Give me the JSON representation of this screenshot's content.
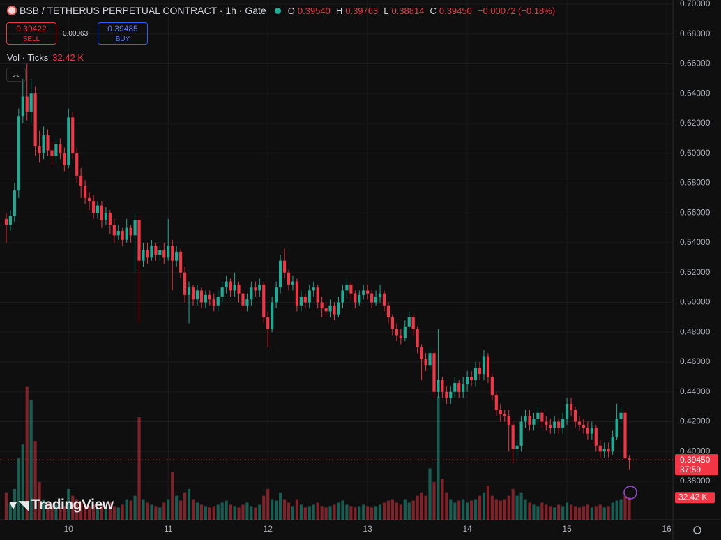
{
  "header": {
    "symbol": "BSB / TETHERUS PERPETUAL CONTRACT · 1h · Gate",
    "ohlc": [
      {
        "key": "O",
        "value": "0.39540"
      },
      {
        "key": "H",
        "value": "0.39763"
      },
      {
        "key": "L",
        "value": "0.38814"
      },
      {
        "key": "C",
        "value": "0.39450"
      }
    ],
    "change": "−0.00072 (−0.18%)",
    "sell": {
      "price": "0.39422",
      "label": "SELL"
    },
    "spread": "0.00063",
    "buy": {
      "price": "0.39485",
      "label": "BUY"
    },
    "volume_title": "Vol · Ticks",
    "logo": "TradingView"
  },
  "chart_data": {
    "type": "candlestick",
    "up_color": "#22ab94",
    "down_color": "#f23645",
    "grid": true,
    "ylim": [
      0.3543,
      0.7028
    ],
    "yticks": [
      {
        "value": 0.38,
        "label": "0.38000"
      },
      {
        "value": 0.4,
        "label": "0.40000"
      },
      {
        "value": 0.42,
        "label": "0.42000"
      },
      {
        "value": 0.44,
        "label": "0.44000"
      },
      {
        "value": 0.46,
        "label": "0.46000"
      },
      {
        "value": 0.48,
        "label": "0.48000"
      },
      {
        "value": 0.5,
        "label": "0.50000"
      },
      {
        "value": 0.52,
        "label": "0.52000"
      },
      {
        "value": 0.54,
        "label": "0.54000"
      },
      {
        "value": 0.56,
        "label": "0.56000"
      },
      {
        "value": 0.58,
        "label": "0.58000"
      },
      {
        "value": 0.6,
        "label": "0.60000"
      },
      {
        "value": 0.62,
        "label": "0.62000"
      },
      {
        "value": 0.64,
        "label": "0.64000"
      },
      {
        "value": 0.66,
        "label": "0.66000"
      },
      {
        "value": 0.68,
        "label": "0.68000"
      },
      {
        "value": 0.7,
        "label": "0.70000"
      }
    ],
    "xlim": [
      -1.5,
      160.5
    ],
    "xticks": [
      {
        "value": 15,
        "label": "10"
      },
      {
        "value": 39,
        "label": "11"
      },
      {
        "value": 63,
        "label": "12"
      },
      {
        "value": 87,
        "label": "13"
      },
      {
        "value": 111,
        "label": "14"
      },
      {
        "value": 135,
        "label": "15"
      },
      {
        "value": 159,
        "label": "16"
      }
    ],
    "volume_lim": [
      0,
      260
    ],
    "last_price": {
      "value": 0.3945,
      "label": "0.39450",
      "countdown": "37:59"
    },
    "last_volume": {
      "value": 32.42,
      "label": "32.42 K"
    },
    "ohlc": [
      [
        0.556,
        0.56,
        0.54,
        0.552
      ],
      [
        0.552,
        0.562,
        0.548,
        0.558
      ],
      [
        0.558,
        0.58,
        0.554,
        0.575
      ],
      [
        0.575,
        0.63,
        0.57,
        0.625
      ],
      [
        0.625,
        0.65,
        0.62,
        0.638
      ],
      [
        0.638,
        0.66,
        0.622,
        0.628
      ],
      [
        0.628,
        0.65,
        0.62,
        0.64
      ],
      [
        0.64,
        0.645,
        0.598,
        0.605
      ],
      [
        0.605,
        0.615,
        0.594,
        0.6
      ],
      [
        0.6,
        0.618,
        0.596,
        0.612
      ],
      [
        0.612,
        0.616,
        0.598,
        0.602
      ],
      [
        0.602,
        0.608,
        0.592,
        0.598
      ],
      [
        0.598,
        0.61,
        0.594,
        0.606
      ],
      [
        0.606,
        0.61,
        0.596,
        0.6
      ],
      [
        0.6,
        0.604,
        0.588,
        0.592
      ],
      [
        0.592,
        0.63,
        0.59,
        0.624
      ],
      [
        0.624,
        0.628,
        0.596,
        0.6
      ],
      [
        0.6,
        0.604,
        0.58,
        0.585
      ],
      [
        0.585,
        0.59,
        0.57,
        0.578
      ],
      [
        0.578,
        0.582,
        0.566,
        0.57
      ],
      [
        0.57,
        0.574,
        0.562,
        0.568
      ],
      [
        0.568,
        0.572,
        0.556,
        0.56
      ],
      [
        0.56,
        0.568,
        0.556,
        0.565
      ],
      [
        0.565,
        0.568,
        0.55,
        0.555
      ],
      [
        0.555,
        0.564,
        0.552,
        0.56
      ],
      [
        0.56,
        0.562,
        0.546,
        0.552
      ],
      [
        0.552,
        0.556,
        0.54,
        0.545
      ],
      [
        0.545,
        0.552,
        0.542,
        0.548
      ],
      [
        0.548,
        0.55,
        0.538,
        0.542
      ],
      [
        0.542,
        0.556,
        0.54,
        0.55
      ],
      [
        0.55,
        0.552,
        0.54,
        0.545
      ],
      [
        0.545,
        0.56,
        0.52,
        0.555
      ],
      [
        0.555,
        0.558,
        0.486,
        0.528
      ],
      [
        0.528,
        0.54,
        0.524,
        0.535
      ],
      [
        0.535,
        0.54,
        0.526,
        0.53
      ],
      [
        0.53,
        0.542,
        0.528,
        0.538
      ],
      [
        0.538,
        0.54,
        0.528,
        0.532
      ],
      [
        0.532,
        0.538,
        0.528,
        0.535
      ],
      [
        0.535,
        0.54,
        0.526,
        0.53
      ],
      [
        0.53,
        0.556,
        0.528,
        0.538
      ],
      [
        0.538,
        0.542,
        0.508,
        0.528
      ],
      [
        0.528,
        0.538,
        0.524,
        0.534
      ],
      [
        0.534,
        0.536,
        0.516,
        0.52
      ],
      [
        0.52,
        0.524,
        0.5,
        0.505
      ],
      [
        0.505,
        0.514,
        0.486,
        0.51
      ],
      [
        0.51,
        0.512,
        0.498,
        0.502
      ],
      [
        0.502,
        0.512,
        0.498,
        0.508
      ],
      [
        0.508,
        0.51,
        0.496,
        0.5
      ],
      [
        0.5,
        0.508,
        0.496,
        0.505
      ],
      [
        0.505,
        0.508,
        0.498,
        0.502
      ],
      [
        0.502,
        0.506,
        0.494,
        0.498
      ],
      [
        0.498,
        0.508,
        0.494,
        0.504
      ],
      [
        0.504,
        0.514,
        0.5,
        0.51
      ],
      [
        0.51,
        0.518,
        0.506,
        0.514
      ],
      [
        0.514,
        0.516,
        0.504,
        0.508
      ],
      [
        0.508,
        0.52,
        0.504,
        0.512
      ],
      [
        0.512,
        0.514,
        0.5,
        0.506
      ],
      [
        0.506,
        0.508,
        0.494,
        0.498
      ],
      [
        0.498,
        0.506,
        0.494,
        0.502
      ],
      [
        0.502,
        0.514,
        0.498,
        0.51
      ],
      [
        0.51,
        0.514,
        0.504,
        0.508
      ],
      [
        0.508,
        0.516,
        0.504,
        0.512
      ],
      [
        0.512,
        0.514,
        0.486,
        0.49
      ],
      [
        0.49,
        0.494,
        0.47,
        0.482
      ],
      [
        0.482,
        0.504,
        0.48,
        0.5
      ],
      [
        0.5,
        0.514,
        0.496,
        0.51
      ],
      [
        0.51,
        0.532,
        0.506,
        0.528
      ],
      [
        0.528,
        0.536,
        0.516,
        0.52
      ],
      [
        0.52,
        0.522,
        0.508,
        0.512
      ],
      [
        0.512,
        0.518,
        0.508,
        0.514
      ],
      [
        0.514,
        0.516,
        0.494,
        0.498
      ],
      [
        0.498,
        0.508,
        0.494,
        0.504
      ],
      [
        0.504,
        0.506,
        0.496,
        0.5
      ],
      [
        0.5,
        0.512,
        0.496,
        0.508
      ],
      [
        0.508,
        0.514,
        0.504,
        0.51
      ],
      [
        0.51,
        0.512,
        0.496,
        0.5
      ],
      [
        0.5,
        0.504,
        0.49,
        0.496
      ],
      [
        0.496,
        0.5,
        0.49,
        0.494
      ],
      [
        0.494,
        0.502,
        0.49,
        0.498
      ],
      [
        0.498,
        0.5,
        0.488,
        0.492
      ],
      [
        0.492,
        0.504,
        0.49,
        0.5
      ],
      [
        0.5,
        0.512,
        0.496,
        0.508
      ],
      [
        0.508,
        0.516,
        0.504,
        0.512
      ],
      [
        0.512,
        0.514,
        0.502,
        0.506
      ],
      [
        0.506,
        0.508,
        0.496,
        0.5
      ],
      [
        0.5,
        0.508,
        0.498,
        0.505
      ],
      [
        0.505,
        0.512,
        0.502,
        0.508
      ],
      [
        0.508,
        0.512,
        0.502,
        0.506
      ],
      [
        0.506,
        0.508,
        0.496,
        0.5
      ],
      [
        0.5,
        0.508,
        0.498,
        0.504
      ],
      [
        0.504,
        0.512,
        0.5,
        0.506
      ],
      [
        0.506,
        0.508,
        0.494,
        0.498
      ],
      [
        0.498,
        0.5,
        0.486,
        0.49
      ],
      [
        0.49,
        0.492,
        0.478,
        0.482
      ],
      [
        0.482,
        0.486,
        0.474,
        0.478
      ],
      [
        0.478,
        0.482,
        0.472,
        0.476
      ],
      [
        0.476,
        0.488,
        0.474,
        0.484
      ],
      [
        0.484,
        0.494,
        0.482,
        0.49
      ],
      [
        0.49,
        0.492,
        0.478,
        0.482
      ],
      [
        0.482,
        0.484,
        0.466,
        0.47
      ],
      [
        0.47,
        0.472,
        0.448,
        0.462
      ],
      [
        0.462,
        0.466,
        0.454,
        0.458
      ],
      [
        0.458,
        0.47,
        0.454,
        0.466
      ],
      [
        0.466,
        0.468,
        0.436,
        0.44
      ],
      [
        0.44,
        0.482,
        0.436,
        0.448
      ],
      [
        0.448,
        0.45,
        0.436,
        0.44
      ],
      [
        0.44,
        0.444,
        0.432,
        0.436
      ],
      [
        0.436,
        0.444,
        0.432,
        0.44
      ],
      [
        0.44,
        0.45,
        0.436,
        0.446
      ],
      [
        0.446,
        0.448,
        0.436,
        0.44
      ],
      [
        0.44,
        0.45,
        0.436,
        0.445
      ],
      [
        0.445,
        0.454,
        0.44,
        0.45
      ],
      [
        0.45,
        0.454,
        0.444,
        0.448
      ],
      [
        0.448,
        0.46,
        0.444,
        0.456
      ],
      [
        0.456,
        0.46,
        0.448,
        0.452
      ],
      [
        0.452,
        0.468,
        0.448,
        0.464
      ],
      [
        0.464,
        0.466,
        0.446,
        0.45
      ],
      [
        0.45,
        0.452,
        0.434,
        0.438
      ],
      [
        0.438,
        0.44,
        0.424,
        0.428
      ],
      [
        0.428,
        0.432,
        0.42,
        0.425
      ],
      [
        0.425,
        0.428,
        0.42,
        0.424
      ],
      [
        0.424,
        0.428,
        0.4,
        0.418
      ],
      [
        0.418,
        0.42,
        0.392,
        0.402
      ],
      [
        0.402,
        0.408,
        0.396,
        0.404
      ],
      [
        0.404,
        0.424,
        0.4,
        0.42
      ],
      [
        0.42,
        0.428,
        0.416,
        0.424
      ],
      [
        0.424,
        0.428,
        0.414,
        0.418
      ],
      [
        0.418,
        0.426,
        0.414,
        0.422
      ],
      [
        0.422,
        0.43,
        0.418,
        0.426
      ],
      [
        0.426,
        0.428,
        0.416,
        0.42
      ],
      [
        0.42,
        0.424,
        0.414,
        0.418
      ],
      [
        0.418,
        0.422,
        0.412,
        0.416
      ],
      [
        0.416,
        0.424,
        0.412,
        0.42
      ],
      [
        0.42,
        0.422,
        0.412,
        0.416
      ],
      [
        0.416,
        0.426,
        0.412,
        0.422
      ],
      [
        0.422,
        0.436,
        0.418,
        0.432
      ],
      [
        0.432,
        0.436,
        0.424,
        0.428
      ],
      [
        0.428,
        0.43,
        0.416,
        0.42
      ],
      [
        0.42,
        0.424,
        0.414,
        0.418
      ],
      [
        0.418,
        0.422,
        0.412,
        0.416
      ],
      [
        0.416,
        0.42,
        0.408,
        0.412
      ],
      [
        0.412,
        0.42,
        0.408,
        0.416
      ],
      [
        0.416,
        0.418,
        0.4,
        0.404
      ],
      [
        0.404,
        0.408,
        0.396,
        0.4
      ],
      [
        0.4,
        0.406,
        0.396,
        0.402
      ],
      [
        0.402,
        0.406,
        0.396,
        0.4
      ],
      [
        0.4,
        0.414,
        0.398,
        0.41
      ],
      [
        0.41,
        0.432,
        0.408,
        0.422
      ],
      [
        0.422,
        0.43,
        0.418,
        0.426
      ],
      [
        0.426,
        0.428,
        0.394,
        0.3954
      ],
      [
        0.3954,
        0.39763,
        0.38814,
        0.3945
      ]
    ],
    "volume": [
      40,
      25,
      45,
      90,
      110,
      195,
      175,
      115,
      55,
      30,
      25,
      20,
      22,
      18,
      20,
      45,
      35,
      30,
      25,
      22,
      20,
      22,
      18,
      20,
      18,
      25,
      20,
      18,
      22,
      30,
      28,
      35,
      150,
      30,
      25,
      22,
      20,
      18,
      25,
      30,
      70,
      35,
      28,
      40,
      45,
      30,
      25,
      22,
      20,
      18,
      20,
      22,
      25,
      28,
      22,
      20,
      18,
      22,
      25,
      20,
      18,
      22,
      35,
      45,
      30,
      28,
      40,
      30,
      25,
      20,
      30,
      22,
      18,
      20,
      22,
      25,
      20,
      18,
      20,
      22,
      25,
      28,
      22,
      20,
      18,
      20,
      22,
      20,
      18,
      20,
      22,
      25,
      28,
      30,
      25,
      22,
      30,
      25,
      28,
      35,
      40,
      35,
      75,
      55,
      180,
      60,
      40,
      30,
      25,
      28,
      30,
      25,
      28,
      30,
      35,
      40,
      50,
      35,
      30,
      28,
      30,
      35,
      45,
      35,
      40,
      30,
      25,
      22,
      20,
      25,
      22,
      20,
      18,
      22,
      20,
      25,
      22,
      20,
      18,
      20,
      22,
      18,
      20,
      22,
      18,
      20,
      25,
      28,
      30,
      35,
      32.42
    ]
  }
}
